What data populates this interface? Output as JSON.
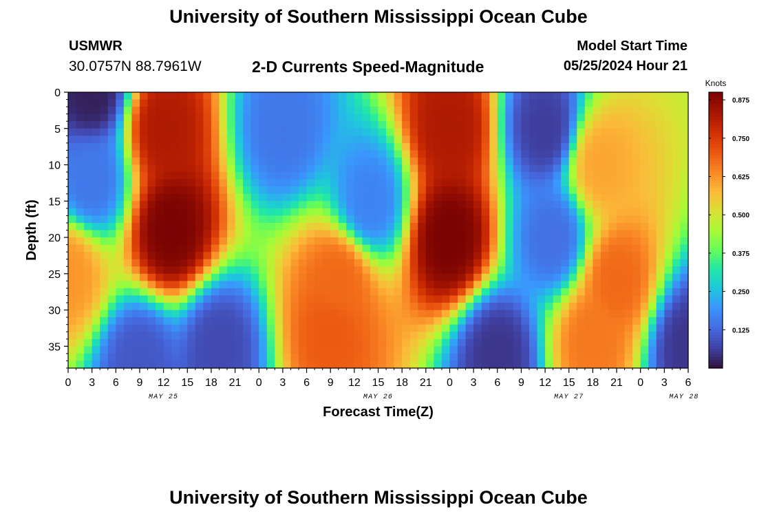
{
  "header": {
    "title": "University of Southern Mississippi Ocean Cube",
    "station": "USMWR",
    "coords": "30.0757N  88.7961W",
    "subtitle": "2-D Currents Speed-Magnitude",
    "model_label": "Model Start Time",
    "model_time": "05/25/2024 Hour 21"
  },
  "footer": {
    "title": "University of Southern Mississippi Ocean Cube"
  },
  "chart_data": {
    "type": "heatmap",
    "xlabel": "Forecast Time(Z)",
    "ylabel": "Depth (ft)",
    "x_tick_labels": [
      "0",
      "3",
      "6",
      "9",
      "12",
      "15",
      "18",
      "21",
      "0",
      "3",
      "6",
      "9",
      "12",
      "15",
      "18",
      "21",
      "0",
      "3",
      "6",
      "9",
      "12",
      "15",
      "18",
      "21",
      "0",
      "3",
      "6"
    ],
    "date_labels": [
      "MAY 25",
      "MAY 26",
      "MAY 27",
      "MAY 28"
    ],
    "y_tick_labels": [
      "0",
      "5",
      "10",
      "15",
      "20",
      "25",
      "30",
      "35"
    ],
    "y_ticks": [
      0,
      5,
      10,
      15,
      20,
      25,
      30,
      35
    ],
    "ylim": [
      0,
      38
    ],
    "xlim_hours": [
      0,
      78
    ],
    "colorbar": {
      "label": "Knots",
      "ticks": [
        "0.875",
        "0.750",
        "0.625",
        "0.500",
        "0.375",
        "0.250",
        "0.125"
      ],
      "tick_values": [
        0.875,
        0.75,
        0.625,
        0.5,
        0.375,
        0.25,
        0.125
      ],
      "range": [
        0.0,
        0.9
      ]
    },
    "speed_features": [
      {
        "hour": 0,
        "depth": 25,
        "value": 0.62
      },
      {
        "hour": 3,
        "depth": 0,
        "value": 0.02
      },
      {
        "hour": 3,
        "depth": 12,
        "value": 0.15
      },
      {
        "hour": 12,
        "depth": 5,
        "value": 0.82
      },
      {
        "hour": 13,
        "depth": 19,
        "value": 0.9
      },
      {
        "hour": 19,
        "depth": 35,
        "value": 0.08
      },
      {
        "hour": 9,
        "depth": 37,
        "value": 0.1
      },
      {
        "hour": 27,
        "depth": 5,
        "value": 0.15
      },
      {
        "hour": 33,
        "depth": 33,
        "value": 0.7
      },
      {
        "hour": 34,
        "depth": 26,
        "value": 0.68
      },
      {
        "hour": 38,
        "depth": 15,
        "value": 0.17
      },
      {
        "hour": 48,
        "depth": 5,
        "value": 0.82
      },
      {
        "hour": 48,
        "depth": 20,
        "value": 0.9
      },
      {
        "hour": 54,
        "depth": 36,
        "value": 0.05
      },
      {
        "hour": 60,
        "depth": 5,
        "value": 0.06
      },
      {
        "hour": 61,
        "depth": 20,
        "value": 0.14
      },
      {
        "hour": 67,
        "depth": 10,
        "value": 0.6
      },
      {
        "hour": 69,
        "depth": 26,
        "value": 0.68
      },
      {
        "hour": 66,
        "depth": 34,
        "value": 0.66
      },
      {
        "hour": 78,
        "depth": 35,
        "value": 0.05
      }
    ],
    "grid": false,
    "legend": "right"
  }
}
